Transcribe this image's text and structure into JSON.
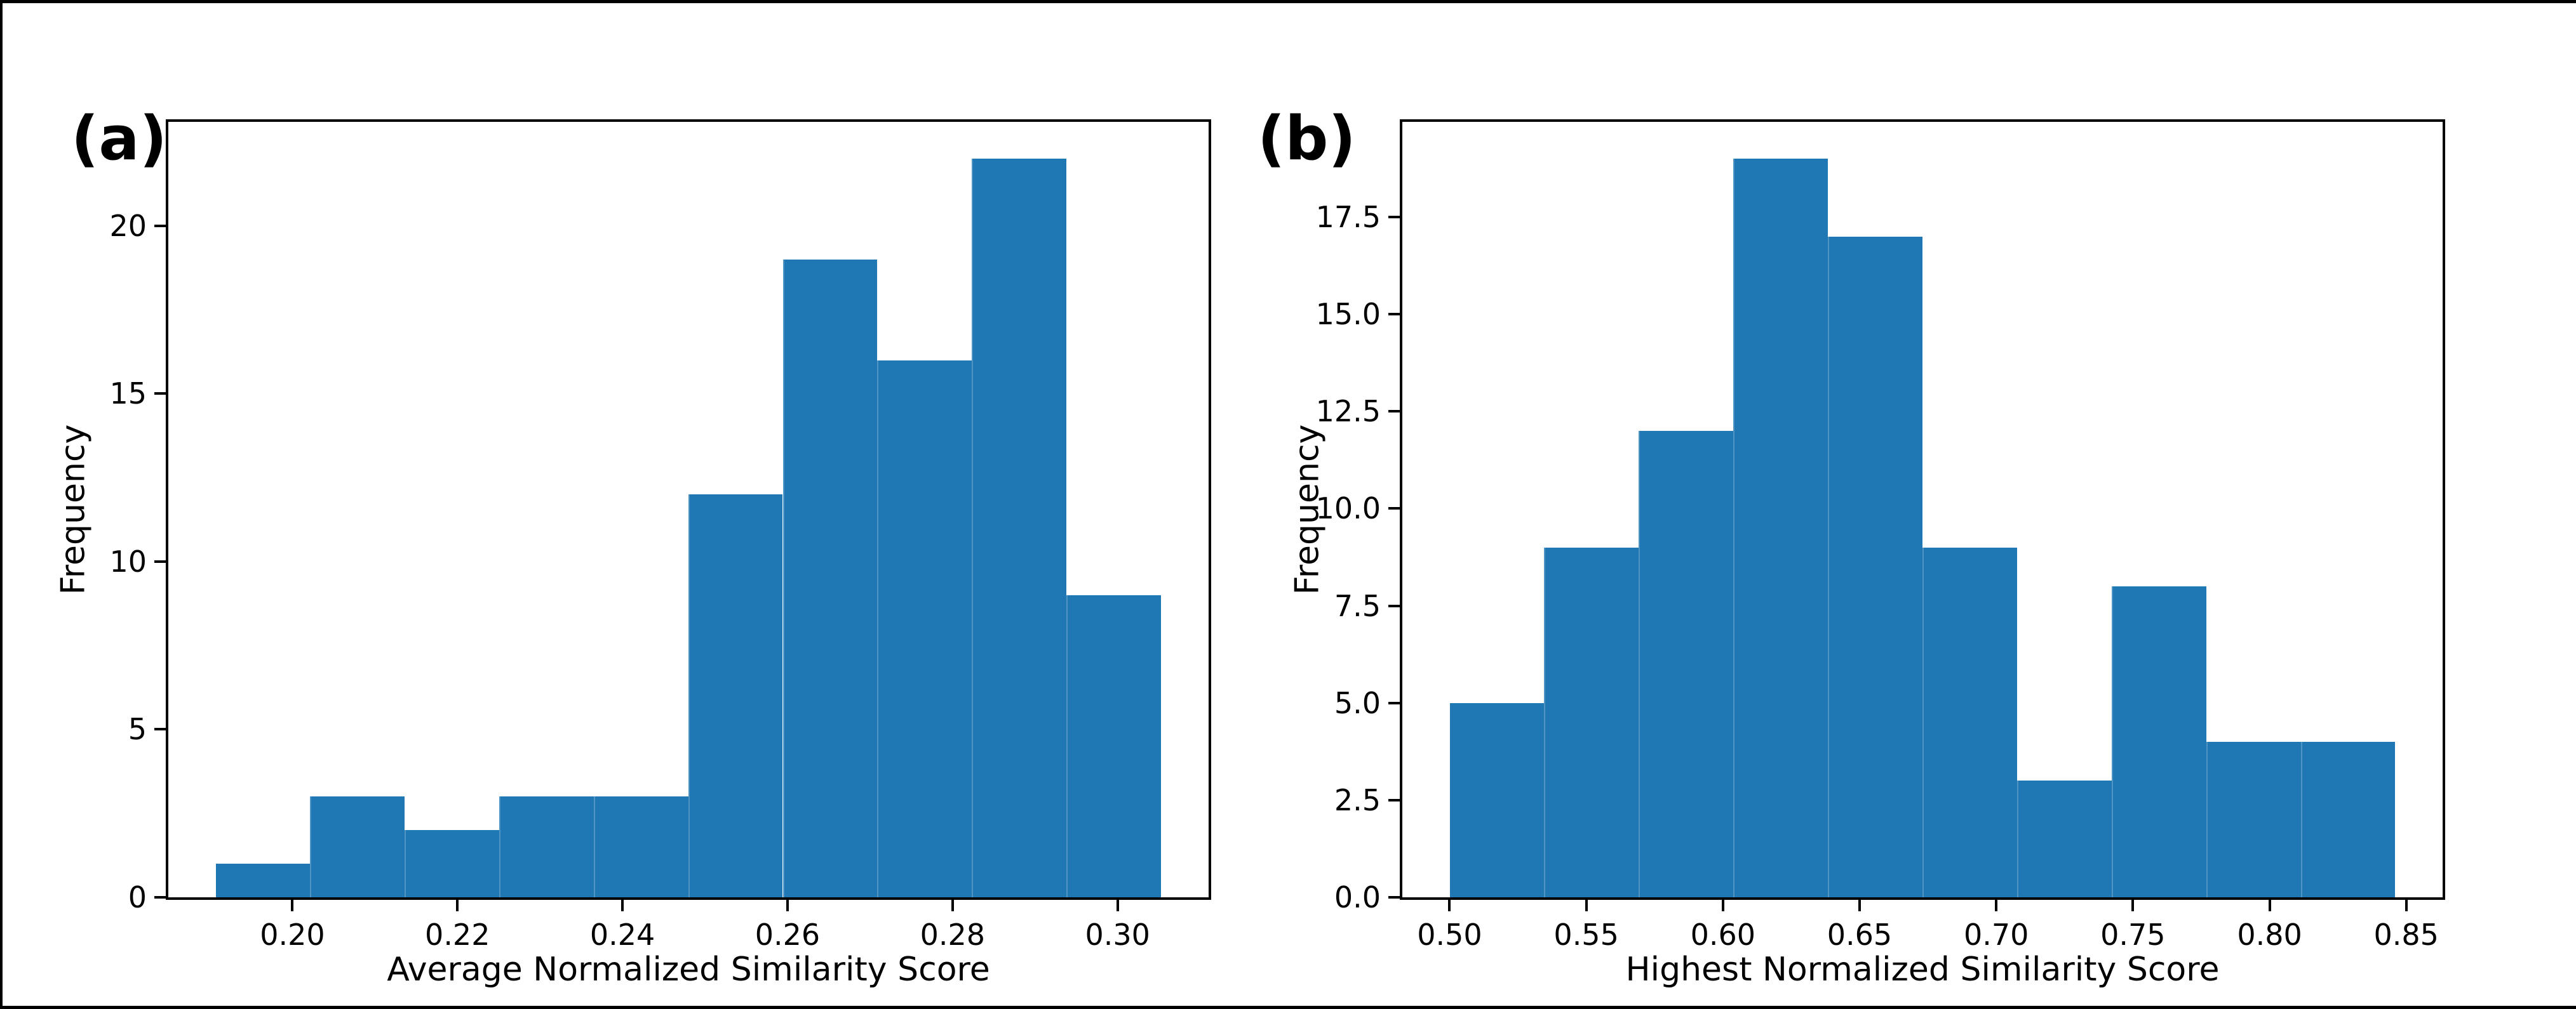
{
  "figure": {
    "background_color": "#ffffff",
    "frame_color": "#000000",
    "bar_color": "#1f77b4",
    "spine_color": "#000000",
    "text_color": "#000000"
  },
  "chart_data": [
    {
      "type": "bar",
      "subtype": "histogram",
      "panel_label": "(a)",
      "title": "",
      "xlabel": "Average Normalized Similarity Score",
      "ylabel": "Frequency",
      "bar_color": "#1f77b4",
      "bin_start": 0.1907,
      "bin_width": 0.011455,
      "values": [
        1,
        3,
        2,
        3,
        3,
        12,
        19,
        16,
        22,
        9
      ],
      "xlim": [
        0.18496,
        0.31103
      ],
      "ylim": [
        0,
        23.1
      ],
      "xticks": [
        0.2,
        0.22,
        0.24,
        0.26,
        0.28,
        0.3
      ],
      "xtick_labels": [
        "0.20",
        "0.22",
        "0.24",
        "0.26",
        "0.28",
        "0.30"
      ],
      "yticks": [
        0,
        5,
        10,
        15,
        20
      ],
      "ytick_labels": [
        "0",
        "5",
        "10",
        "15",
        "20"
      ],
      "grid": false,
      "legend": null
    },
    {
      "type": "bar",
      "subtype": "histogram",
      "panel_label": "(b)",
      "title": "",
      "xlabel": "Highest Normalized Similarity Score",
      "ylabel": "Frequency",
      "bar_color": "#1f77b4",
      "bin_start": 0.5,
      "bin_width": 0.0346,
      "values": [
        5,
        9,
        12,
        19,
        17,
        9,
        3,
        8,
        4,
        4
      ],
      "xlim": [
        0.4827,
        0.8633
      ],
      "ylim": [
        0,
        19.95
      ],
      "xticks": [
        0.5,
        0.55,
        0.6,
        0.65,
        0.7,
        0.75,
        0.8,
        0.85
      ],
      "xtick_labels": [
        "0.50",
        "0.55",
        "0.60",
        "0.65",
        "0.70",
        "0.75",
        "0.80",
        "0.85"
      ],
      "yticks": [
        0.0,
        2.5,
        5.0,
        7.5,
        10.0,
        12.5,
        15.0,
        17.5
      ],
      "ytick_labels": [
        "0.0",
        "2.5",
        "5.0",
        "7.5",
        "10.0",
        "12.5",
        "15.0",
        "17.5"
      ],
      "grid": false,
      "legend": null
    }
  ]
}
